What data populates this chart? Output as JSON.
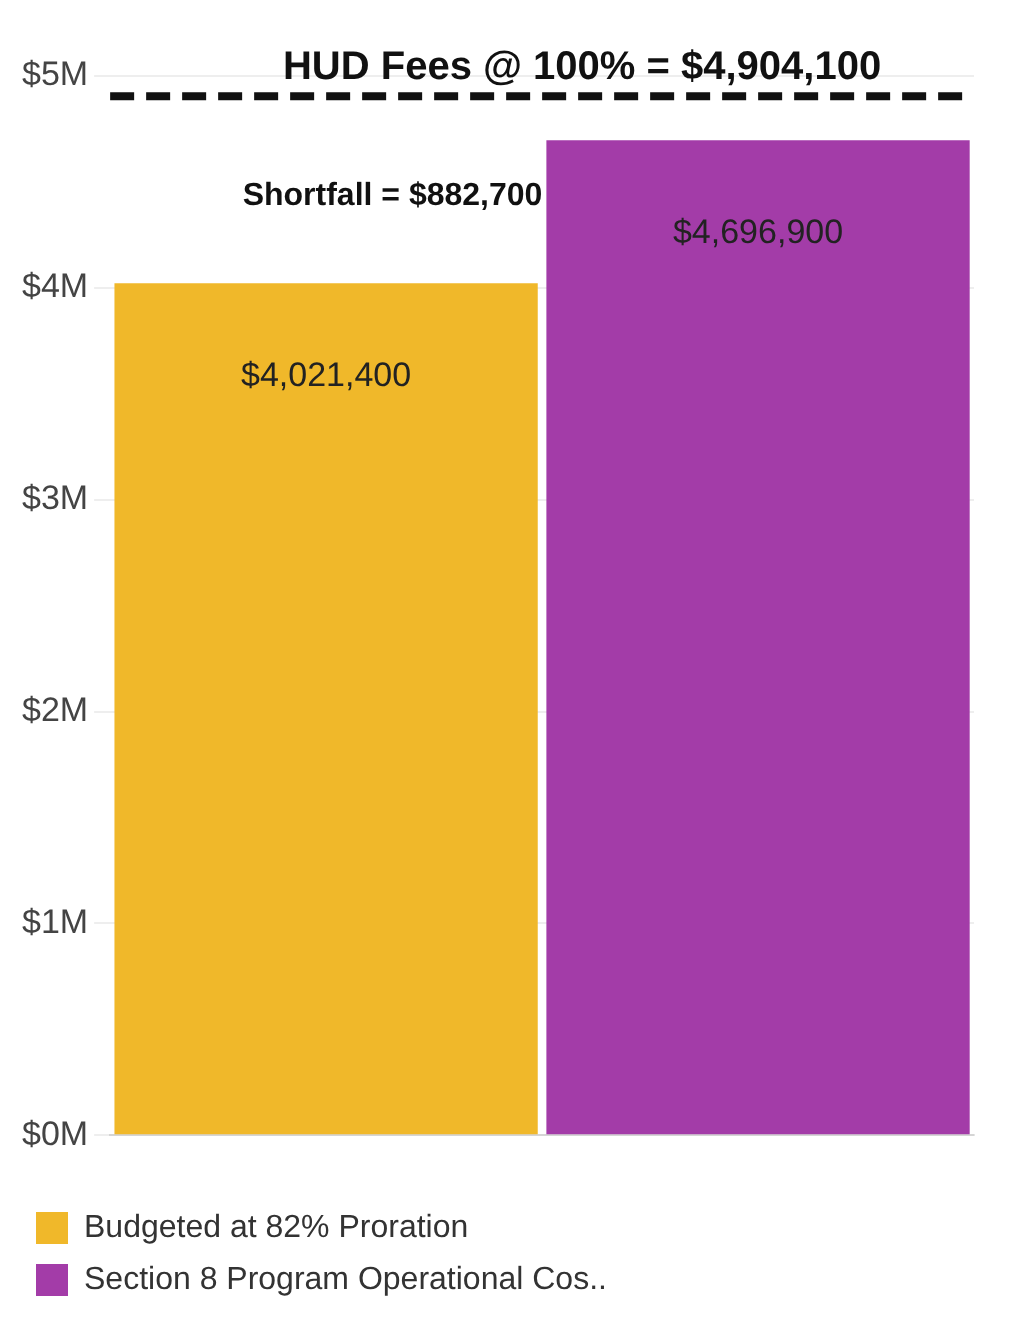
{
  "chart_data": {
    "type": "bar",
    "categories": [
      null,
      null
    ],
    "series": [
      {
        "name": "Budgeted at 82% Proration",
        "color": "#f0b82a",
        "values": [
          4021400,
          null
        ],
        "value_labels": [
          "$4,021,400",
          null
        ]
      },
      {
        "name": "Section 8 Program Operational Cos..",
        "color": "#a33ca8",
        "values": [
          null,
          4696900
        ],
        "value_labels": [
          null,
          "$4,696,900"
        ]
      }
    ],
    "ylim": [
      0,
      5000000
    ],
    "yticks": [
      {
        "value": 0,
        "label": "$0M"
      },
      {
        "value": 1000000,
        "label": "$1M"
      },
      {
        "value": 2000000,
        "label": "$2M"
      },
      {
        "value": 3000000,
        "label": "$3M"
      },
      {
        "value": 4000000,
        "label": "$4M"
      },
      {
        "value": 5000000,
        "label": "$5M"
      }
    ],
    "ref_lines": [
      {
        "axis": "y",
        "value": 4904100,
        "label": "HUD Fees @ 100% = $4,904,100",
        "color": "#111111",
        "line_style": "dashed"
      }
    ],
    "annotations": [
      "Shortfall = $882,700"
    ],
    "grid": "y",
    "legend": "bottom left"
  }
}
